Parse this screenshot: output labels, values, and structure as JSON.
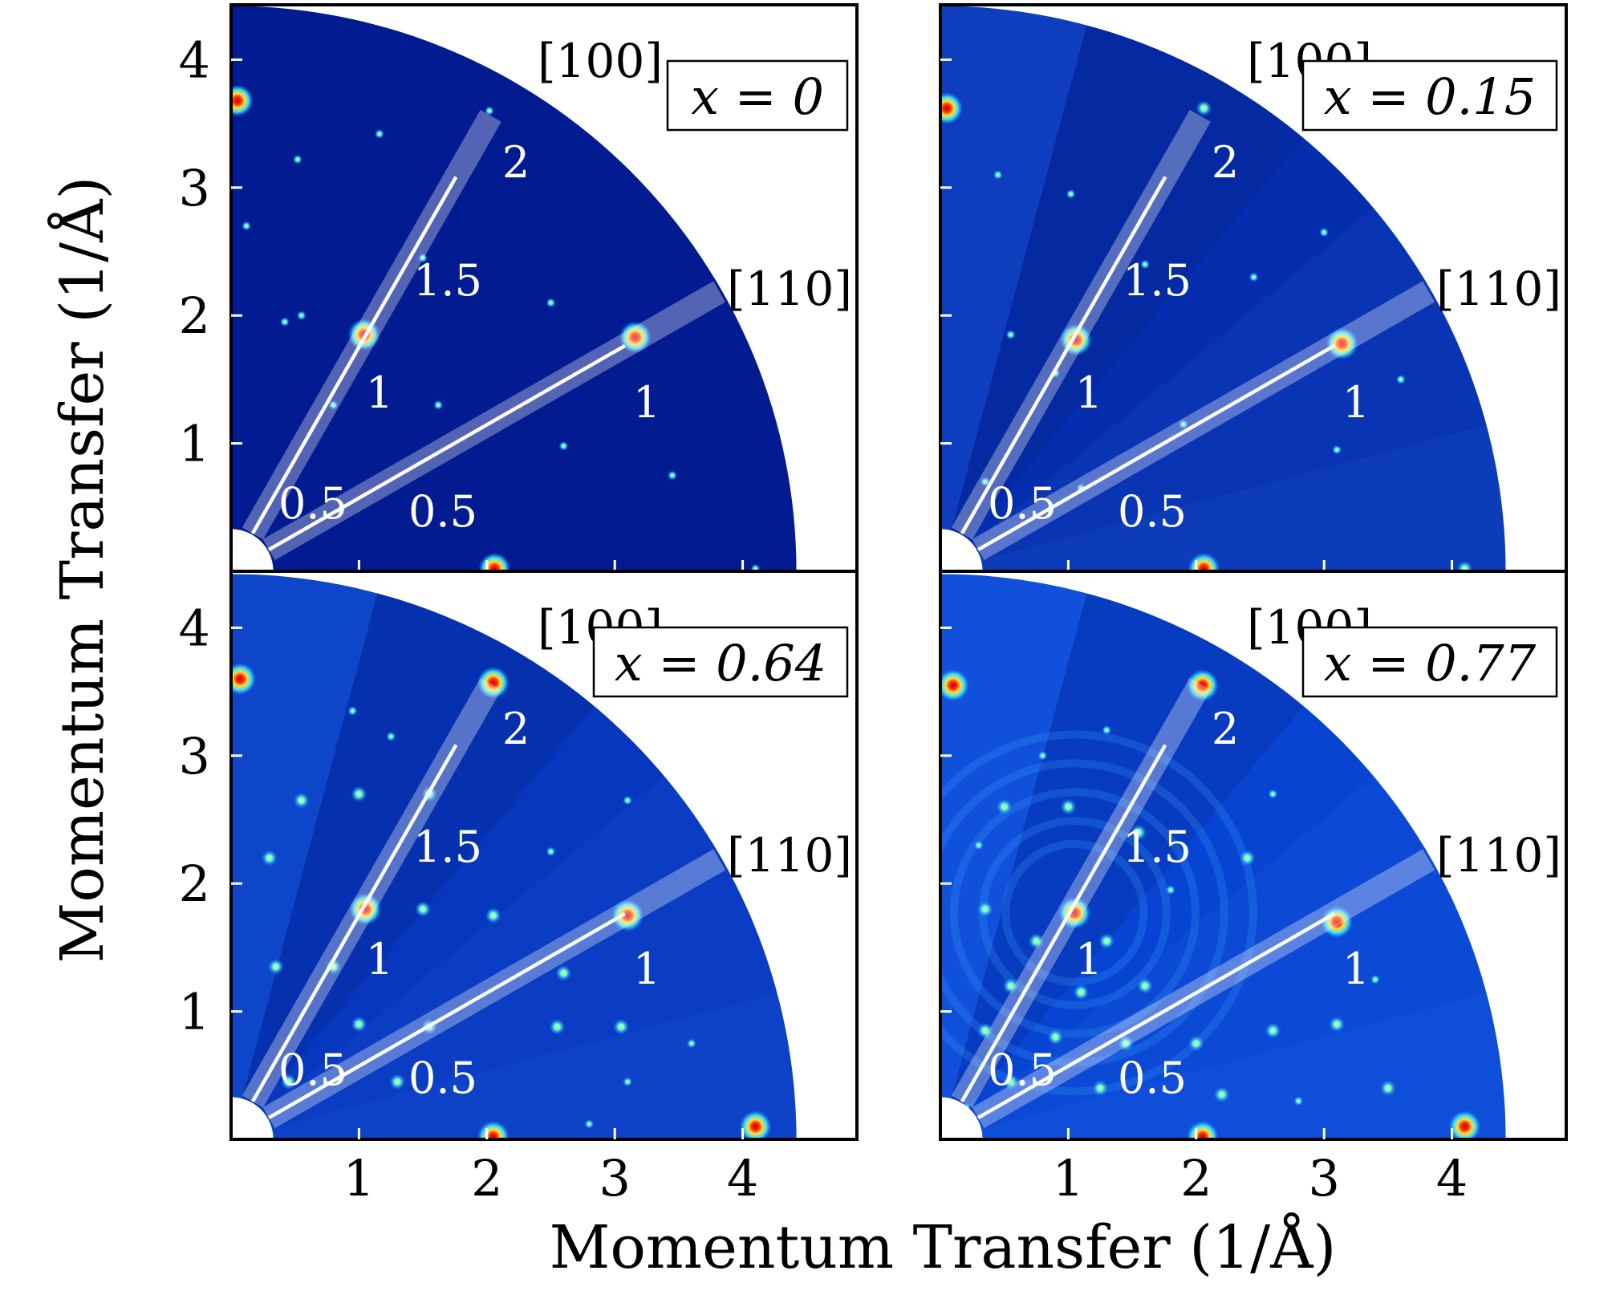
{
  "figure": {
    "xlabel": "Momentum Transfer (1/Å)",
    "ylabel": "Momentum Transfer (1/Å)"
  },
  "colors": {
    "background_deep": "#00107a",
    "background_mid": "#0a3cd8",
    "spot_cyan": "#6ef0ff",
    "spot_yellow": "#ffff40",
    "spot_red": "#e01010",
    "line": "#ffffff"
  },
  "chart_data": [
    {
      "type": "heatmap",
      "label": "x = 0",
      "xlim": [
        0,
        4.9
      ],
      "ylim": [
        0,
        4.45
      ],
      "xticks": [
        "1",
        "2",
        "3",
        "4"
      ],
      "yticks": [
        "1",
        "2",
        "3",
        "4"
      ],
      "directions": [
        {
          "name": "[100]",
          "ticks": [
            "0.5",
            "1.5",
            "2"
          ],
          "tick1": "1"
        },
        {
          "name": "[110]",
          "ticks": [
            "0.5",
            "1"
          ]
        }
      ],
      "intensity": 0.15,
      "spots": [
        [
          0.05,
          3.68,
          3
        ],
        [
          1.04,
          1.85,
          3
        ],
        [
          3.16,
          1.83,
          3
        ],
        [
          2.06,
          0.02,
          3
        ],
        [
          2.02,
          3.6,
          1
        ],
        [
          1.16,
          3.42,
          1
        ],
        [
          0.52,
          3.22,
          1
        ],
        [
          0.12,
          2.7,
          1
        ],
        [
          0.55,
          2.0,
          1
        ],
        [
          1.62,
          1.3,
          1
        ],
        [
          0.42,
          1.95,
          1
        ],
        [
          3.45,
          0.75,
          1
        ],
        [
          2.6,
          0.98,
          1
        ],
        [
          1.5,
          2.45,
          1
        ],
        [
          2.5,
          2.1,
          1
        ],
        [
          0.8,
          1.3,
          1
        ],
        [
          4.1,
          0.02,
          1
        ]
      ]
    },
    {
      "type": "heatmap",
      "label": "x = 0.15",
      "xlim": [
        0,
        4.9
      ],
      "ylim": [
        0,
        4.45
      ],
      "xticks": [
        "1",
        "2",
        "3",
        "4"
      ],
      "yticks": [
        "1",
        "2",
        "3",
        "4"
      ],
      "directions": [
        {
          "name": "[100]",
          "ticks": [
            "0.5",
            "1.5",
            "2"
          ],
          "tick1": "1"
        },
        {
          "name": "[110]",
          "ticks": [
            "0.5",
            "1"
          ]
        }
      ],
      "intensity": 0.45,
      "spots": [
        [
          0.05,
          3.62,
          3
        ],
        [
          1.06,
          1.81,
          3
        ],
        [
          3.14,
          1.78,
          3
        ],
        [
          2.06,
          0.02,
          3
        ],
        [
          2.06,
          3.62,
          2
        ],
        [
          4.1,
          0.02,
          2
        ],
        [
          0.55,
          1.85,
          1
        ],
        [
          1.02,
          2.95,
          1
        ],
        [
          1.6,
          2.4,
          1
        ],
        [
          0.45,
          3.1,
          1
        ],
        [
          0.35,
          0.7,
          1
        ],
        [
          1.1,
          0.65,
          1
        ],
        [
          3.1,
          0.95,
          1
        ],
        [
          1.9,
          1.15,
          1
        ],
        [
          3.6,
          1.5,
          1
        ],
        [
          0.9,
          1.55,
          1
        ],
        [
          3.0,
          2.65,
          1
        ],
        [
          2.45,
          2.3,
          1
        ]
      ]
    },
    {
      "type": "heatmap",
      "label": "x = 0.64",
      "xlim": [
        0,
        4.9
      ],
      "ylim": [
        0,
        4.45
      ],
      "xticks": [
        "1",
        "2",
        "3",
        "4"
      ],
      "yticks": [
        "1",
        "2",
        "3",
        "4"
      ],
      "directions": [
        {
          "name": "[100]",
          "ticks": [
            "0.5",
            "1.5",
            "2"
          ],
          "tick1": "1"
        },
        {
          "name": "[110]",
          "ticks": [
            "0.5",
            "1"
          ]
        }
      ],
      "intensity": 0.6,
      "spots": [
        [
          0.07,
          3.6,
          3
        ],
        [
          1.05,
          1.8,
          3
        ],
        [
          3.1,
          1.75,
          3
        ],
        [
          2.05,
          3.57,
          3
        ],
        [
          2.05,
          0.02,
          3
        ],
        [
          4.1,
          0.1,
          3
        ],
        [
          0.55,
          2.65,
          2
        ],
        [
          1.0,
          2.7,
          2
        ],
        [
          1.55,
          2.7,
          2
        ],
        [
          0.3,
          2.2,
          2
        ],
        [
          1.5,
          1.8,
          2
        ],
        [
          2.05,
          1.75,
          2
        ],
        [
          0.35,
          1.35,
          2
        ],
        [
          0.8,
          1.35,
          2
        ],
        [
          1.0,
          0.9,
          2
        ],
        [
          1.55,
          0.88,
          2
        ],
        [
          2.55,
          0.88,
          2
        ],
        [
          3.05,
          0.88,
          2
        ],
        [
          0.45,
          0.45,
          2
        ],
        [
          1.3,
          0.45,
          2
        ],
        [
          2.6,
          1.3,
          2
        ],
        [
          0.95,
          3.35,
          1
        ],
        [
          1.25,
          3.15,
          1
        ],
        [
          2.5,
          2.25,
          1
        ],
        [
          3.1,
          2.65,
          1
        ],
        [
          3.6,
          0.75,
          1
        ],
        [
          3.1,
          0.45,
          1
        ],
        [
          2.8,
          0.12,
          1
        ]
      ]
    },
    {
      "type": "heatmap",
      "label": "x = 0.77",
      "xlim": [
        0,
        4.9
      ],
      "ylim": [
        0,
        4.45
      ],
      "xticks": [
        "1",
        "2",
        "3",
        "4"
      ],
      "yticks": [
        "1",
        "2",
        "3",
        "4"
      ],
      "directions": [
        {
          "name": "[100]",
          "ticks": [
            "0.5",
            "1.5",
            "2"
          ],
          "tick1": "1"
        },
        {
          "name": "[110]",
          "ticks": [
            "0.5",
            "1"
          ]
        }
      ],
      "intensity": 0.8,
      "spots": [
        [
          0.1,
          3.55,
          3
        ],
        [
          1.05,
          1.77,
          3
        ],
        [
          3.1,
          1.7,
          3
        ],
        [
          2.05,
          3.55,
          3
        ],
        [
          2.05,
          0.02,
          3
        ],
        [
          4.1,
          0.1,
          3
        ],
        [
          0.35,
          1.8,
          2
        ],
        [
          0.75,
          1.55,
          2
        ],
        [
          1.3,
          1.55,
          2
        ],
        [
          0.55,
          1.2,
          2
        ],
        [
          1.1,
          1.15,
          2
        ],
        [
          1.6,
          1.2,
          2
        ],
        [
          0.35,
          0.85,
          2
        ],
        [
          0.9,
          0.8,
          2
        ],
        [
          1.45,
          0.75,
          2
        ],
        [
          2.0,
          0.75,
          2
        ],
        [
          2.6,
          0.85,
          2
        ],
        [
          3.1,
          0.9,
          2
        ],
        [
          0.55,
          0.45,
          2
        ],
        [
          1.25,
          0.4,
          2
        ],
        [
          2.2,
          0.35,
          2
        ],
        [
          3.5,
          0.4,
          2
        ],
        [
          0.5,
          2.6,
          2
        ],
        [
          1.0,
          2.6,
          2
        ],
        [
          1.55,
          2.4,
          2
        ],
        [
          2.4,
          2.2,
          2
        ],
        [
          0.3,
          2.3,
          1
        ],
        [
          0.8,
          3.0,
          1
        ],
        [
          1.3,
          3.2,
          1
        ],
        [
          2.6,
          2.7,
          1
        ],
        [
          3.4,
          1.25,
          1
        ],
        [
          1.8,
          1.95,
          1
        ],
        [
          0.2,
          0.25,
          1
        ],
        [
          2.8,
          0.3,
          1
        ]
      ]
    }
  ]
}
